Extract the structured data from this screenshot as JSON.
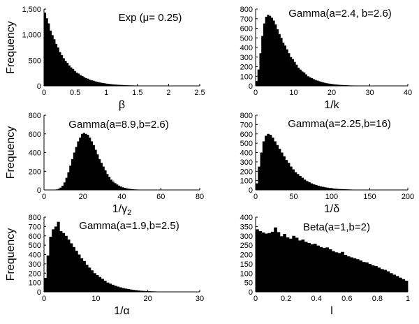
{
  "chart_data": [
    {
      "type": "bar",
      "title": "Exp (μ= 0.25)",
      "xlabel": "β",
      "ylabel": "Frequency",
      "xlim": [
        0,
        2.5
      ],
      "ylim": [
        0,
        1500
      ],
      "xticks": [
        "0",
        "0.5",
        "1",
        "1.5",
        "2",
        "2.5"
      ],
      "yticks": [
        "0",
        "500",
        "1,000",
        "1,500"
      ],
      "bin_start": 0,
      "bin_width": 0.03,
      "values": [
        1430,
        1320,
        1220,
        1080,
        990,
        910,
        820,
        750,
        660,
        600,
        540,
        490,
        450,
        400,
        360,
        330,
        290,
        260,
        240,
        210,
        190,
        170,
        150,
        140,
        120,
        110,
        100,
        88,
        78,
        70,
        62,
        55,
        50,
        44,
        40,
        35,
        31,
        28,
        25,
        22,
        20,
        18,
        16,
        14,
        12,
        11,
        10,
        9,
        8,
        7,
        6,
        5,
        5,
        4,
        4,
        3,
        3,
        2,
        2,
        2,
        1,
        1,
        1,
        1
      ]
    },
    {
      "type": "bar",
      "title": "Gamma(a=2.4, b=2.6)",
      "xlabel": "1/k",
      "ylabel": "",
      "xlim": [
        0,
        40
      ],
      "ylim": [
        0,
        800
      ],
      "xticks": [
        "0",
        "10",
        "20",
        "30",
        "40"
      ],
      "yticks": [
        "0",
        "100",
        "200",
        "300",
        "400",
        "500",
        "600",
        "700",
        "800"
      ],
      "bin_start": 0,
      "bin_width": 0.5,
      "values": [
        50,
        170,
        340,
        520,
        650,
        720,
        740,
        730,
        710,
        680,
        640,
        590,
        540,
        500,
        450,
        420,
        380,
        340,
        300,
        280,
        250,
        220,
        190,
        170,
        150,
        140,
        120,
        100,
        90,
        80,
        70,
        62,
        55,
        48,
        42,
        36,
        31,
        27,
        24,
        21,
        18,
        16,
        14,
        12,
        10,
        9,
        8,
        7,
        6,
        5,
        5,
        4,
        4,
        3,
        3,
        2,
        2,
        2,
        1,
        1
      ]
    },
    {
      "type": "bar",
      "title": "Gamma(a=8.9,b=2.6)",
      "xlabel": "1/γ2",
      "ylabel": "Frequency",
      "xlim": [
        0,
        80
      ],
      "ylim": [
        0,
        800
      ],
      "xticks": [
        "0",
        "20",
        "40",
        "60",
        "80"
      ],
      "yticks": [
        "0",
        "200",
        "400",
        "600",
        "800"
      ],
      "bin_start": 5,
      "bin_width": 1,
      "values": [
        3,
        6,
        12,
        24,
        45,
        80,
        130,
        190,
        260,
        330,
        400,
        460,
        520,
        560,
        600,
        610,
        600,
        590,
        560,
        520,
        480,
        430,
        380,
        330,
        290,
        250,
        210,
        170,
        140,
        110,
        90,
        72,
        58,
        46,
        36,
        28,
        22,
        17,
        13,
        10,
        8,
        6,
        5,
        4,
        3,
        2,
        2,
        1
      ]
    },
    {
      "type": "bar",
      "title": "Gamma(a=2.25,b=16)",
      "xlabel": "1/δ",
      "ylabel": "",
      "xlim": [
        0,
        200
      ],
      "ylim": [
        0,
        800
      ],
      "xticks": [
        "0",
        "50",
        "100",
        "150",
        "200"
      ],
      "yticks": [
        "0",
        "100",
        "200",
        "300",
        "400",
        "500",
        "600",
        "700",
        "800"
      ],
      "bin_start": 0,
      "bin_width": 3,
      "values": [
        70,
        250,
        400,
        520,
        580,
        600,
        590,
        560,
        520,
        480,
        440,
        400,
        360,
        320,
        290,
        250,
        220,
        190,
        170,
        150,
        130,
        110,
        95,
        82,
        70,
        60,
        52,
        45,
        38,
        33,
        28,
        24,
        20,
        17,
        14,
        12,
        10,
        9,
        8,
        7,
        6,
        5,
        4,
        3,
        3,
        2,
        2,
        1
      ]
    },
    {
      "type": "bar",
      "title": "Gamma(a=1.9,b=2.5)",
      "xlabel": "1/α",
      "ylabel": "Frequency",
      "xlim": [
        0,
        30
      ],
      "ylim": [
        0,
        800
      ],
      "xticks": [
        "0",
        "10",
        "20",
        "30"
      ],
      "yticks": [
        "0",
        "100",
        "200",
        "300",
        "400",
        "500",
        "600",
        "700",
        "800"
      ],
      "bin_start": 0,
      "bin_width": 0.5,
      "values": [
        150,
        390,
        590,
        670,
        700,
        750,
        650,
        630,
        600,
        560,
        520,
        480,
        440,
        400,
        360,
        330,
        290,
        260,
        230,
        200,
        180,
        160,
        140,
        120,
        100,
        88,
        76,
        65,
        56,
        48,
        41,
        35,
        30,
        25,
        21,
        18,
        15,
        12,
        10,
        8,
        7,
        6,
        5,
        4,
        3,
        3,
        2,
        2,
        1,
        1
      ]
    },
    {
      "type": "bar",
      "title": "Beta(a=1,b=2)",
      "xlabel": "l",
      "ylabel": "",
      "xlim": [
        0,
        1
      ],
      "ylim": [
        0,
        400
      ],
      "xticks": [
        "0",
        "0.2",
        "0.4",
        "0.6",
        "0.8",
        "1"
      ],
      "yticks": [
        "0",
        "50",
        "100",
        "150",
        "200",
        "250",
        "300",
        "350",
        "400"
      ],
      "bin_start": 0,
      "bin_width": 0.02,
      "values": [
        335,
        325,
        318,
        312,
        315,
        322,
        345,
        320,
        298,
        310,
        292,
        285,
        300,
        290,
        275,
        280,
        268,
        262,
        255,
        258,
        248,
        240,
        235,
        238,
        228,
        218,
        212,
        208,
        214,
        198,
        190,
        185,
        180,
        175,
        168,
        160,
        158,
        150,
        142,
        138,
        130,
        122,
        118,
        110,
        100,
        92,
        85,
        76,
        68,
        60
      ]
    }
  ]
}
